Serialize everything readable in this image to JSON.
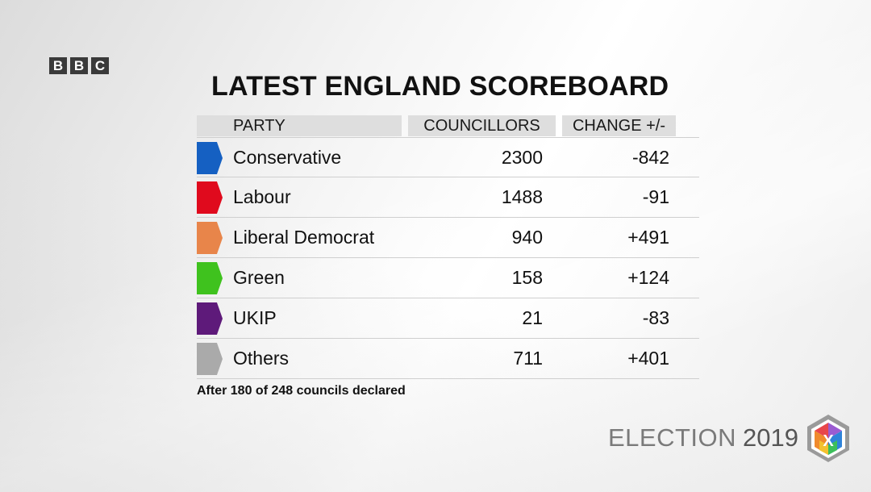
{
  "brand": {
    "letters": [
      "B",
      "B",
      "C"
    ]
  },
  "title": "LATEST ENGLAND SCOREBOARD",
  "headers": {
    "party": "PARTY",
    "councillors": "COUNCILLORS",
    "change": "CHANGE +/-"
  },
  "chart_data": {
    "type": "table",
    "title": "LATEST ENGLAND SCOREBOARD",
    "columns": [
      "PARTY",
      "COUNCILLORS",
      "CHANGE +/-"
    ],
    "rows": [
      {
        "party": "Conservative",
        "councillors": "2300",
        "change": "-842",
        "color": "#1560c2"
      },
      {
        "party": "Labour",
        "councillors": "1488",
        "change": "-91",
        "color": "#e00a1d"
      },
      {
        "party": "Liberal Democrat",
        "councillors": "940",
        "change": "+491",
        "color": "#e8854a"
      },
      {
        "party": "Green",
        "councillors": "158",
        "change": "+124",
        "color": "#3fc21e"
      },
      {
        "party": "UKIP",
        "councillors": "21",
        "change": "-83",
        "color": "#5e1a7a"
      },
      {
        "party": "Others",
        "councillors": "711",
        "change": "+401",
        "color": "#aaaaaa"
      }
    ]
  },
  "footnote": "After 180 of 248 councils declared",
  "election_logo": {
    "word": "ELECTION",
    "year": "2019",
    "mark": "X"
  }
}
